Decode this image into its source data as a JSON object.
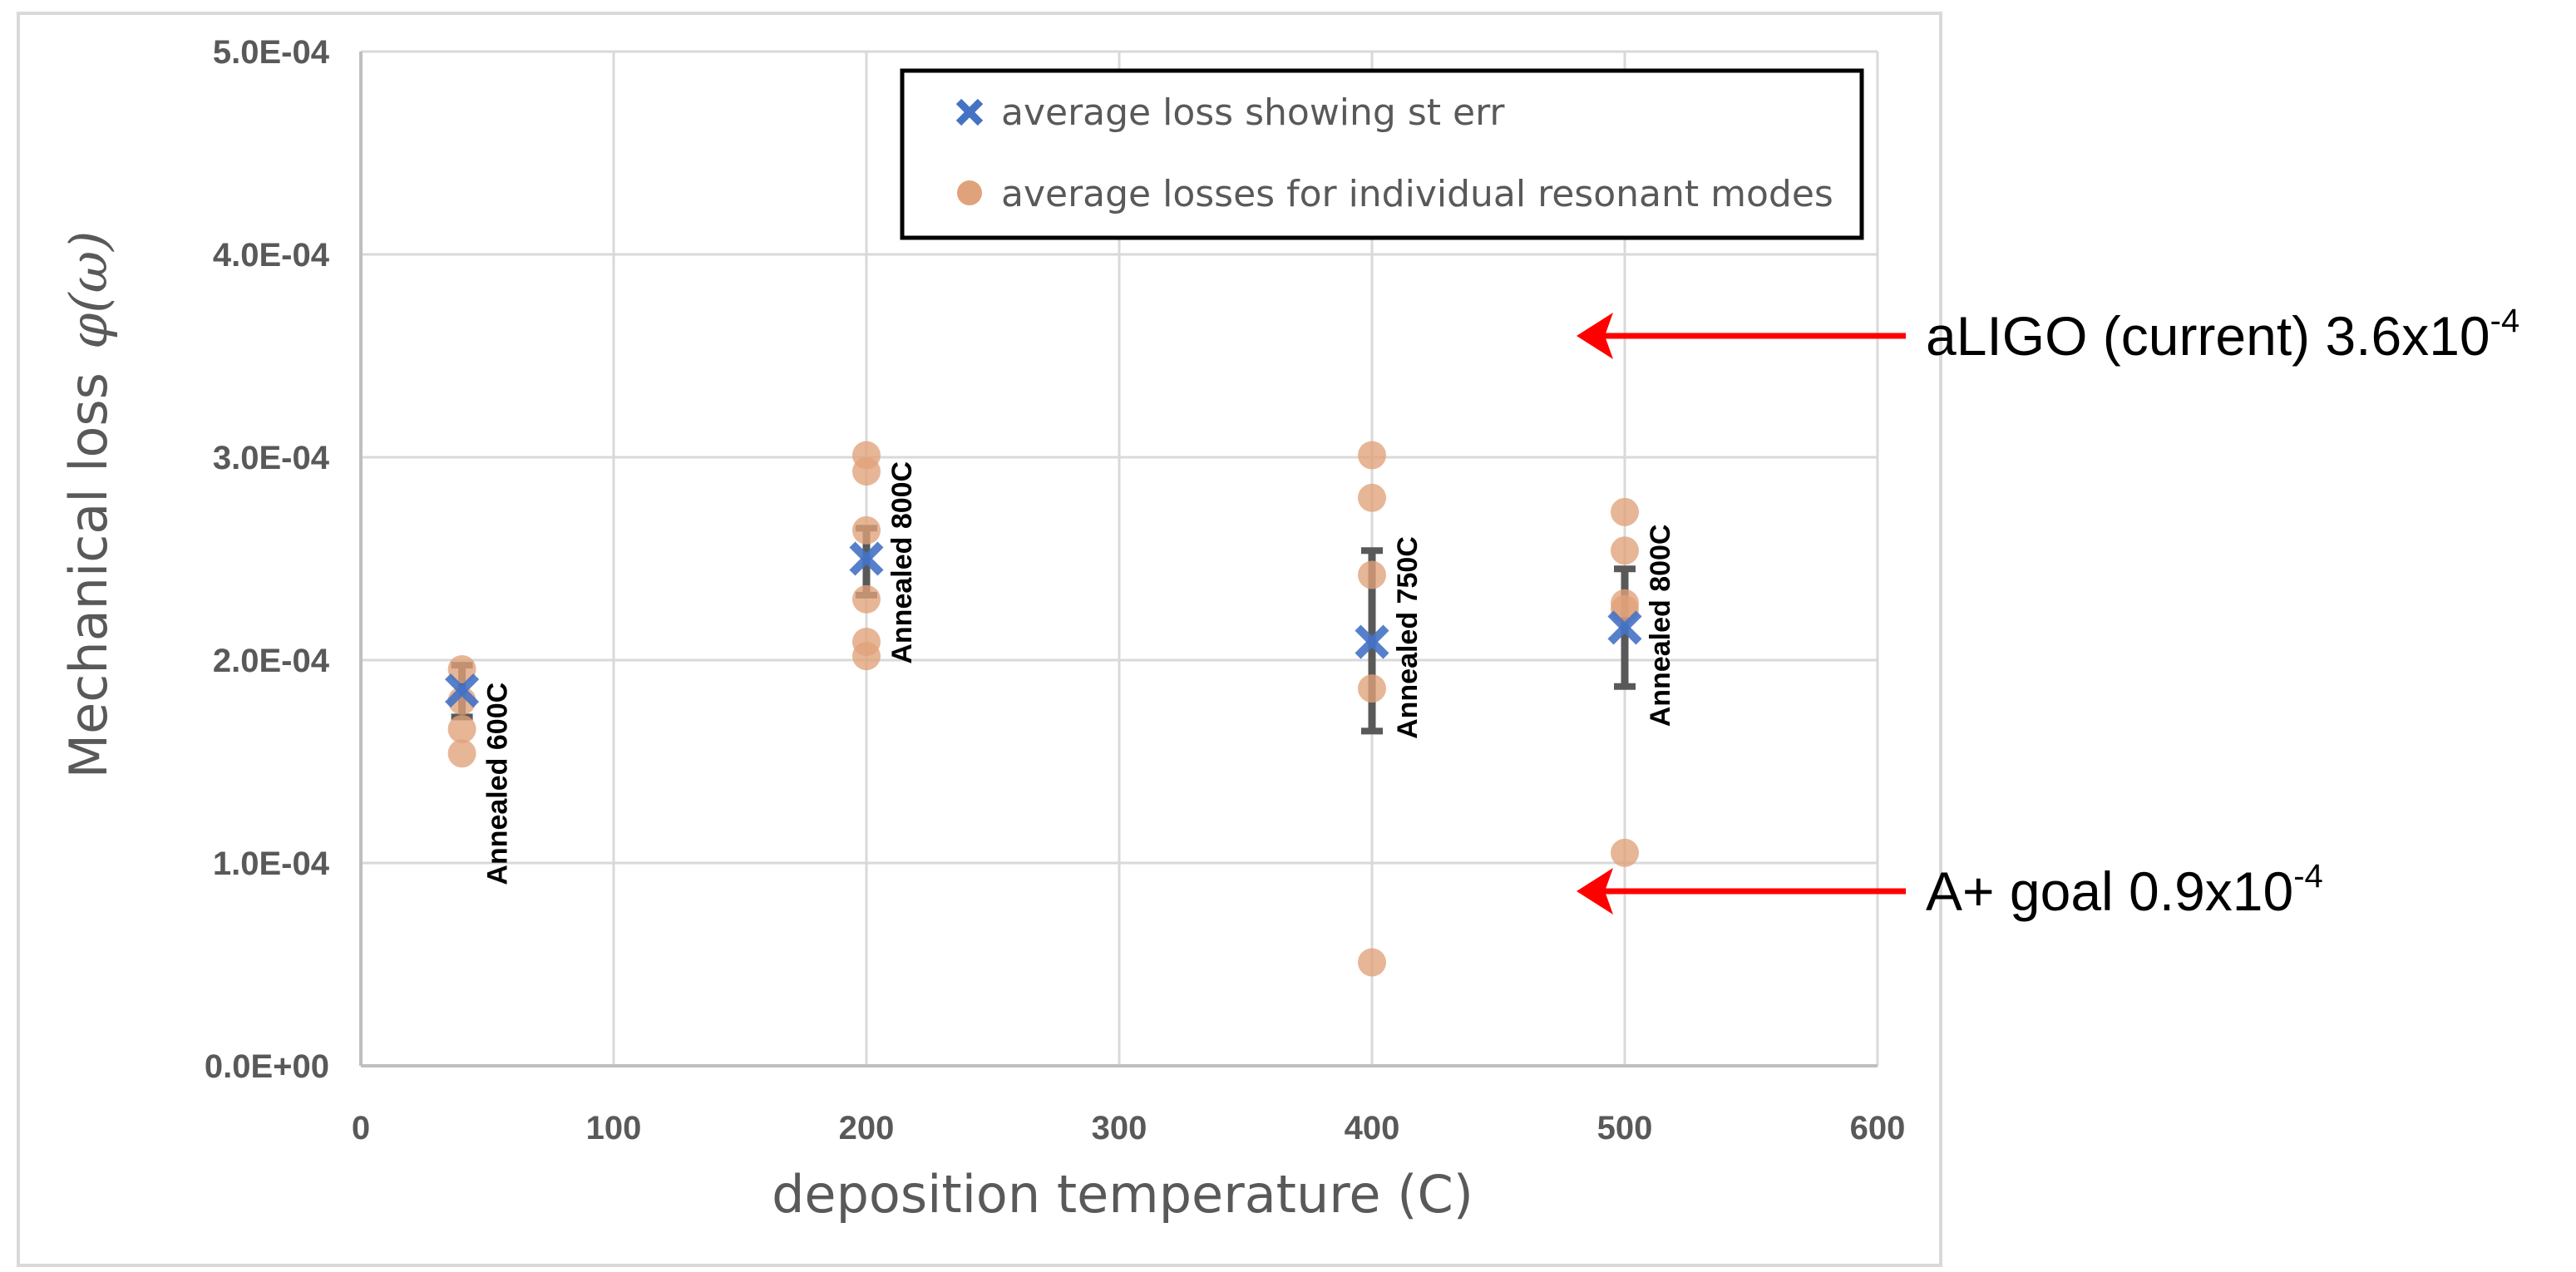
{
  "chart_data": {
    "type": "scatter",
    "title": "",
    "xlabel": "deposition temperature (C)",
    "ylabel": "Mechanical loss",
    "ylabel_symbol": "φ(ω)",
    "xlim": [
      0,
      600
    ],
    "ylim": [
      0,
      0.0005
    ],
    "x_ticks": [
      0,
      100,
      200,
      300,
      400,
      500,
      600
    ],
    "x_tick_labels": [
      "0",
      "100",
      "200",
      "300",
      "400",
      "500",
      "600"
    ],
    "y_ticks": [
      0,
      0.0001,
      0.0002,
      0.0003,
      0.0004,
      0.0005
    ],
    "y_tick_labels": [
      "0.0E+00",
      "1.0E-04",
      "2.0E-04",
      "3.0E-04",
      "4.0E-04",
      "5.0E-04"
    ],
    "grid": true,
    "legend_position": "top-right",
    "series": [
      {
        "name": "average loss showing st err",
        "marker": "x",
        "color": "#4472C4",
        "error_bar_color": "#595959",
        "points": [
          {
            "x": 40,
            "y": 0.000185,
            "err_low": 0.000172,
            "err_high": 0.0001975
          },
          {
            "x": 200,
            "y": 0.00025,
            "err_low": 0.000232,
            "err_high": 0.000265
          },
          {
            "x": 400,
            "y": 0.000209,
            "err_low": 0.000165,
            "err_high": 0.000254
          },
          {
            "x": 500,
            "y": 0.000216,
            "err_low": 0.000187,
            "err_high": 0.000245
          }
        ]
      },
      {
        "name": "average losses for individual resonant modes",
        "marker": "circle",
        "color": "#E0A27A",
        "points": [
          {
            "x": 40,
            "y": 0.0001955
          },
          {
            "x": 40,
            "y": 0.00018
          },
          {
            "x": 40,
            "y": 0.000166
          },
          {
            "x": 40,
            "y": 0.000154
          },
          {
            "x": 200,
            "y": 0.000301
          },
          {
            "x": 200,
            "y": 0.000293
          },
          {
            "x": 200,
            "y": 0.000264
          },
          {
            "x": 200,
            "y": 0.00023
          },
          {
            "x": 200,
            "y": 0.000209
          },
          {
            "x": 200,
            "y": 0.000202
          },
          {
            "x": 400,
            "y": 0.000301
          },
          {
            "x": 400,
            "y": 0.00028
          },
          {
            "x": 400,
            "y": 0.000242
          },
          {
            "x": 400,
            "y": 0.000186
          },
          {
            "x": 400,
            "y": 5.1e-05
          },
          {
            "x": 500,
            "y": 0.000273
          },
          {
            "x": 500,
            "y": 0.000254
          },
          {
            "x": 500,
            "y": 0.000228
          },
          {
            "x": 500,
            "y": 0.000225
          },
          {
            "x": 500,
            "y": 0.000105
          }
        ]
      }
    ],
    "annotations": [
      {
        "text": "Annealed 600C",
        "x": 40,
        "y_top": 0.000189
      },
      {
        "text": "Annealed 800C",
        "x": 200,
        "y_top": 0.000298
      },
      {
        "text": "Annealed 750C",
        "x": 400,
        "y_top": 0.000261
      },
      {
        "text": "Annealed 800C",
        "x": 500,
        "y_top": 0.000267
      }
    ],
    "reference_callouts": [
      {
        "label": "aLIGO (current) 3.6x10",
        "exponent": "-4",
        "value": 0.00036,
        "color": "#FF0000"
      },
      {
        "label": "A+ goal 0.9x10",
        "exponent": "-4",
        "value": 9e-05,
        "color": "#FF0000"
      }
    ]
  },
  "colors": {
    "grid": "#D9D9D9",
    "axis_text": "#595959",
    "arrow": "#FF0000"
  }
}
